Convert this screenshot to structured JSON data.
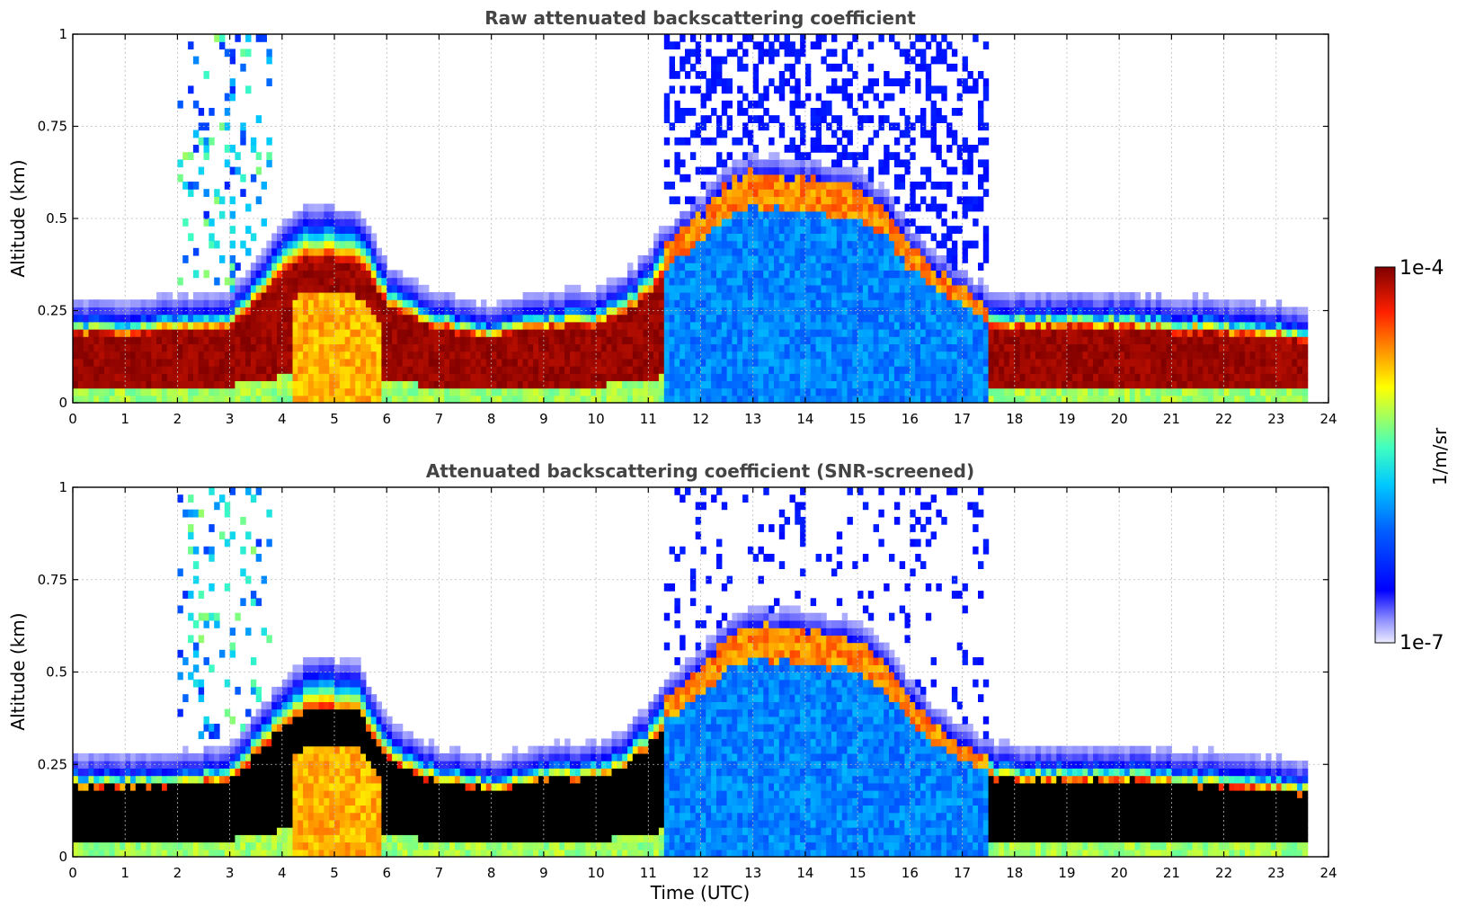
{
  "chart_data": [
    {
      "type": "heatmap",
      "title": "Raw attenuated backscattering coefficient",
      "xlabel": "",
      "ylabel": "Altitude (km)",
      "xlim": [
        0,
        24
      ],
      "ylim": [
        0,
        1
      ],
      "x_ticks": [
        "0",
        "1",
        "2",
        "3",
        "4",
        "5",
        "6",
        "7",
        "8",
        "9",
        "10",
        "11",
        "12",
        "13",
        "14",
        "15",
        "16",
        "17",
        "18",
        "19",
        "20",
        "21",
        "22",
        "23",
        "24"
      ],
      "y_ticks": [
        "0",
        "0.25",
        "0.5",
        "0.75",
        "1"
      ],
      "grid": true,
      "screened": false,
      "boundary_layer_top_km": [
        [
          0,
          0.22
        ],
        [
          1,
          0.22
        ],
        [
          2,
          0.23
        ],
        [
          3,
          0.24
        ],
        [
          4,
          0.42
        ],
        [
          4.5,
          0.48
        ],
        [
          5,
          0.48
        ],
        [
          5.5,
          0.46
        ],
        [
          6,
          0.32
        ],
        [
          6.5,
          0.27
        ],
        [
          7,
          0.24
        ],
        [
          8,
          0.21
        ],
        [
          9,
          0.24
        ],
        [
          10,
          0.25
        ],
        [
          10.5,
          0.28
        ],
        [
          11,
          0.35
        ],
        [
          11.3,
          0.42
        ],
        [
          12,
          0.5
        ],
        [
          12.5,
          0.58
        ],
        [
          13,
          0.62
        ],
        [
          14,
          0.6
        ],
        [
          15,
          0.58
        ],
        [
          15.5,
          0.52
        ],
        [
          16,
          0.42
        ],
        [
          16.5,
          0.35
        ],
        [
          17,
          0.3
        ],
        [
          17.3,
          0.27
        ],
        [
          17.6,
          0.25
        ],
        [
          18,
          0.24
        ],
        [
          19,
          0.24
        ],
        [
          20,
          0.24
        ],
        [
          21,
          0.23
        ],
        [
          22,
          0.22
        ],
        [
          23,
          0.21
        ],
        [
          23.5,
          0.2
        ]
      ]
    },
    {
      "type": "heatmap",
      "title": "Attenuated backscattering coefficient (SNR-screened)",
      "xlabel": "Time (UTC)",
      "ylabel": "Altitude (km)",
      "xlim": [
        0,
        24
      ],
      "ylim": [
        0,
        1
      ],
      "x_ticks": [
        "0",
        "1",
        "2",
        "3",
        "4",
        "5",
        "6",
        "7",
        "8",
        "9",
        "10",
        "11",
        "12",
        "13",
        "14",
        "15",
        "16",
        "17",
        "18",
        "19",
        "20",
        "21",
        "22",
        "23",
        "24"
      ],
      "y_ticks": [
        "0",
        "0.25",
        "0.5",
        "0.75",
        "1"
      ],
      "grid": true,
      "screened": true,
      "boundary_layer_top_km": [
        [
          0,
          0.22
        ],
        [
          1,
          0.22
        ],
        [
          2,
          0.23
        ],
        [
          3,
          0.24
        ],
        [
          4,
          0.42
        ],
        [
          4.5,
          0.48
        ],
        [
          5,
          0.48
        ],
        [
          5.5,
          0.46
        ],
        [
          6,
          0.32
        ],
        [
          6.5,
          0.27
        ],
        [
          7,
          0.24
        ],
        [
          8,
          0.21
        ],
        [
          9,
          0.24
        ],
        [
          10,
          0.25
        ],
        [
          10.5,
          0.28
        ],
        [
          11,
          0.35
        ],
        [
          11.3,
          0.42
        ],
        [
          12,
          0.5
        ],
        [
          12.5,
          0.58
        ],
        [
          13,
          0.62
        ],
        [
          14,
          0.6
        ],
        [
          15,
          0.58
        ],
        [
          15.5,
          0.52
        ],
        [
          16,
          0.42
        ],
        [
          16.5,
          0.35
        ],
        [
          17,
          0.3
        ],
        [
          17.3,
          0.27
        ],
        [
          17.6,
          0.25
        ],
        [
          18,
          0.24
        ],
        [
          19,
          0.24
        ],
        [
          20,
          0.24
        ],
        [
          21,
          0.23
        ],
        [
          22,
          0.22
        ],
        [
          23,
          0.21
        ],
        [
          23.5,
          0.2
        ]
      ]
    }
  ],
  "colorbar": {
    "max_label": "1e-4",
    "min_label": "1e-7",
    "unit_label": "1/m/sr",
    "colors": [
      "#ececff",
      "#c8c8ff",
      "#8080ff",
      "#0000ff",
      "#0050ff",
      "#00a0ff",
      "#00e0ff",
      "#40ffc0",
      "#a0ff60",
      "#ffff00",
      "#ffc000",
      "#ff8000",
      "#ff3000",
      "#d00000",
      "#800000"
    ]
  }
}
